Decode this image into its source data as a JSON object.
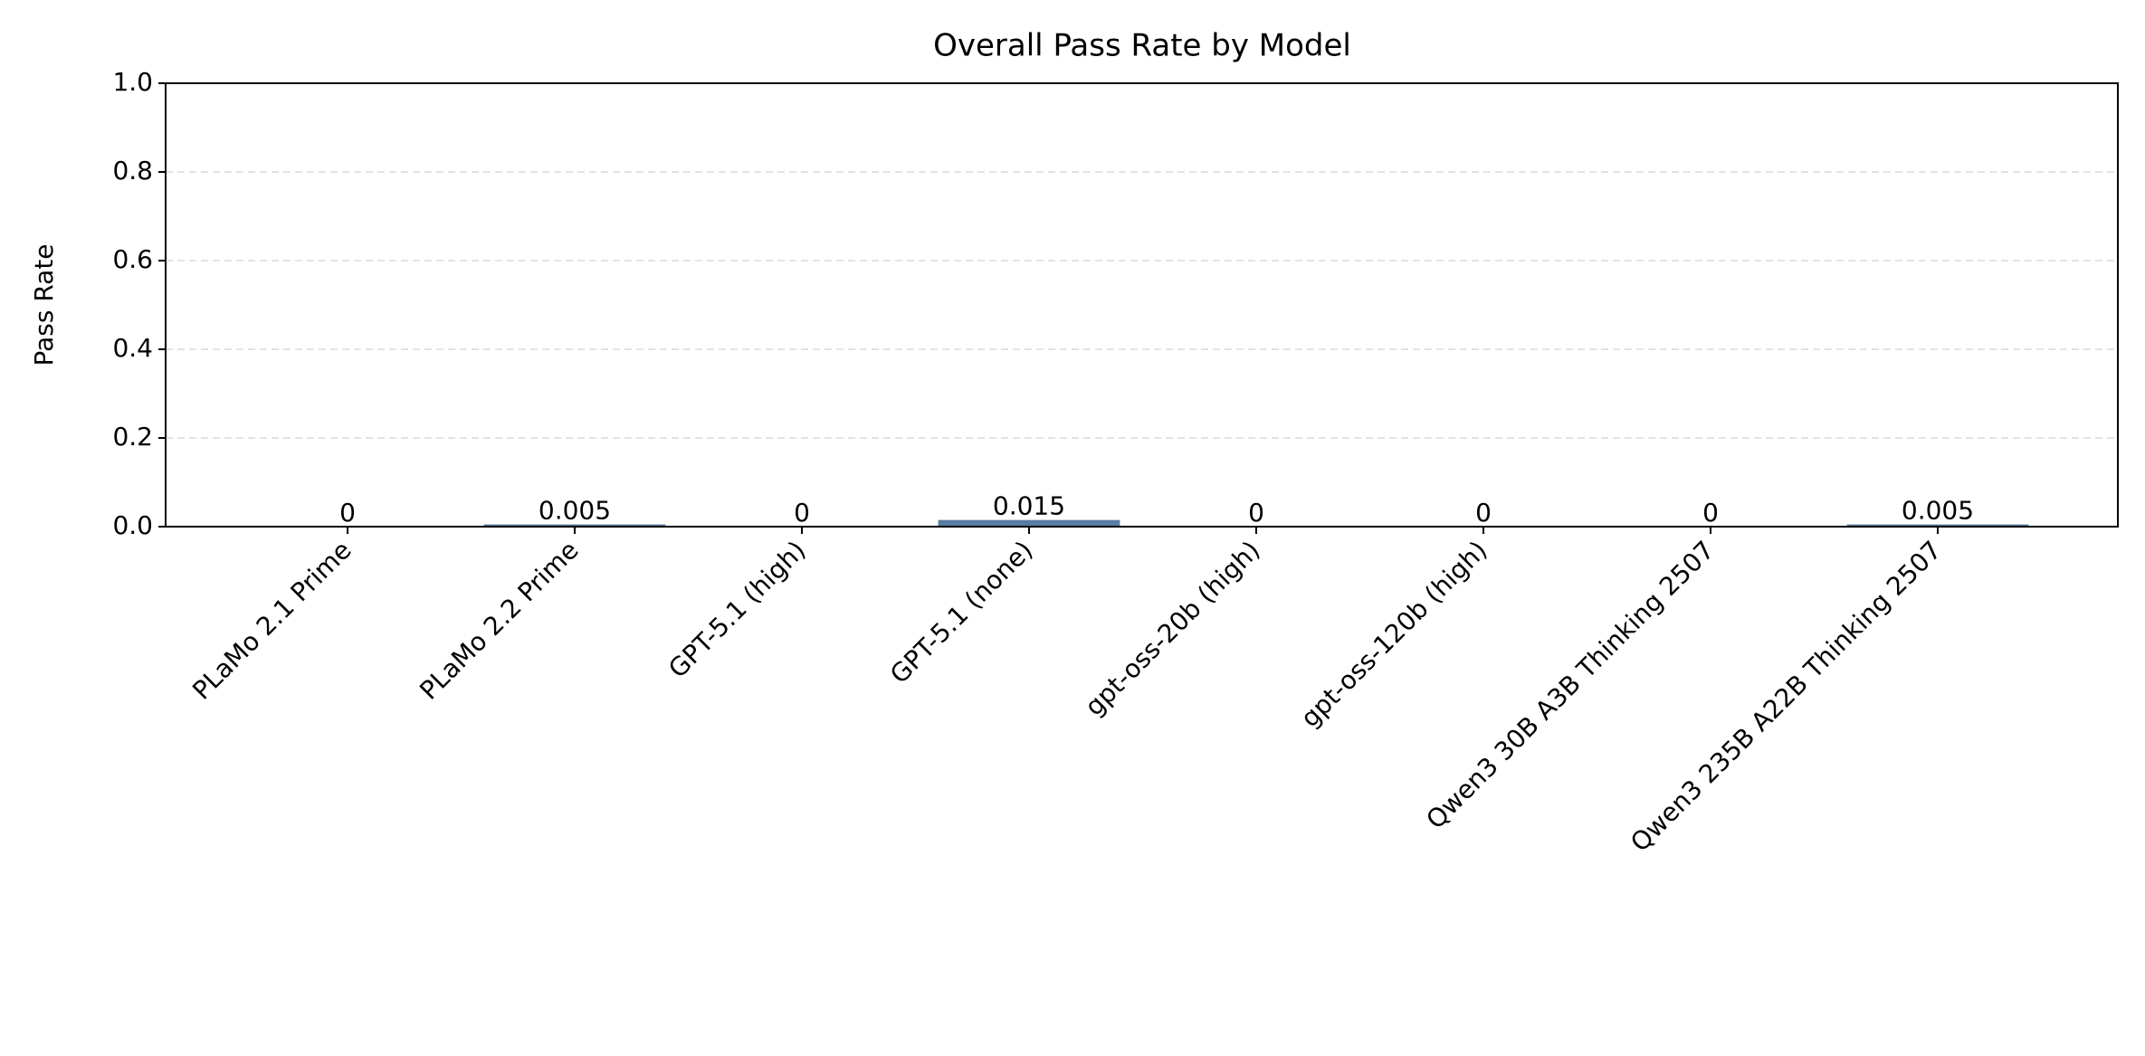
{
  "chart_data": {
    "type": "bar",
    "title": "Overall Pass Rate by Model",
    "y_label": "Pass Rate",
    "categories": [
      "PLaMo 2.1 Prime",
      "PLaMo 2.2 Prime",
      "GPT-5.1 (high)",
      "GPT-5.1 (none)",
      "gpt-oss-20b (high)",
      "gpt-oss-120b (high)",
      "Qwen3 30B A3B Thinking 2507",
      "Qwen3 235B A22B Thinking 2507"
    ],
    "values": [
      0,
      0.005,
      0,
      0.015,
      0,
      0,
      0,
      0.005
    ],
    "color": "#5a7ca3",
    "ylim": [
      0,
      1
    ],
    "yticks": [
      {
        "value": 0,
        "label": "0.0"
      },
      {
        "value": 0.2,
        "label": "0.2"
      },
      {
        "value": 0.4,
        "label": "0.4"
      },
      {
        "value": 0.6,
        "label": "0.6"
      },
      {
        "value": 0.8,
        "label": "0.8"
      },
      {
        "value": 1,
        "label": "1.0"
      }
    ],
    "grid": true
  }
}
